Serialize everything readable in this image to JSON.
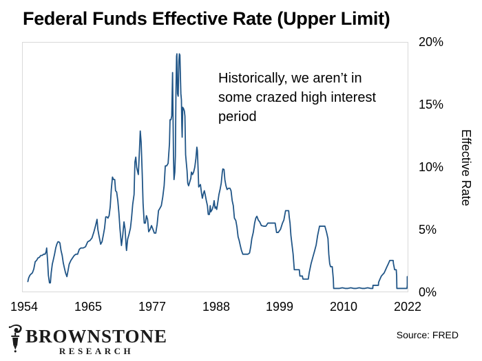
{
  "header": {
    "title": "Federal Funds Effective Rate (Upper Limit)"
  },
  "annotation": {
    "text": "Historically, we aren’t in\nsome crazed high interest\nperiod"
  },
  "y_axis": {
    "label": "Effective Rate",
    "ticks": [
      "20%",
      "15%",
      "10%",
      "5%",
      "0%"
    ]
  },
  "x_axis": {
    "ticks": [
      "1954",
      "1965",
      "1977",
      "1988",
      "1999",
      "2010",
      "2022"
    ]
  },
  "footer": {
    "logo": {
      "icon": "lamppost-icon",
      "name": "BROWNSTONE",
      "subtitle": "RESEARCH"
    },
    "source": "Source: FRED"
  },
  "colors": {
    "line": "#1f5486",
    "plot_border": "#d9d9d9",
    "text": "#000000",
    "logo": "#1b1b1b",
    "background": "#ffffff"
  },
  "chart_data": {
    "type": "line",
    "title": "Federal Funds Effective Rate (Upper Limit)",
    "xlabel": "",
    "ylabel": "Effective Rate",
    "xlim": [
      1954,
      2022.5
    ],
    "ylim": [
      0,
      20
    ],
    "x_tick_labels": [
      "1954",
      "1965",
      "1977",
      "1988",
      "1999",
      "2010",
      "2022"
    ],
    "y_tick_labels": [
      "0%",
      "5%",
      "10%",
      "15%",
      "20%"
    ],
    "grid": false,
    "legend": "none",
    "annotation": "Historically, we aren’t in some crazed high interest period",
    "source": "Source: FRED",
    "series": [
      {
        "name": "Federal Funds Effective Rate (Upper Limit)",
        "units": "percent",
        "points": [
          [
            1954.55,
            0.8
          ],
          [
            1954.7,
            1.1
          ],
          [
            1954.9,
            1.3
          ],
          [
            1955.1,
            1.4
          ],
          [
            1955.35,
            1.5
          ],
          [
            1955.6,
            1.8
          ],
          [
            1955.85,
            2.4
          ],
          [
            1956.1,
            2.5
          ],
          [
            1956.35,
            2.7
          ],
          [
            1956.6,
            2.75
          ],
          [
            1956.85,
            2.9
          ],
          [
            1957.1,
            2.9
          ],
          [
            1957.35,
            3
          ],
          [
            1957.6,
            3
          ],
          [
            1957.8,
            3.2
          ],
          [
            1957.9,
            3.5
          ],
          [
            1958.05,
            2.5
          ],
          [
            1958.2,
            1.3
          ],
          [
            1958.4,
            0.7
          ],
          [
            1958.55,
            0.7
          ],
          [
            1958.7,
            1.5
          ],
          [
            1958.9,
            2.2
          ],
          [
            1959.1,
            2.6
          ],
          [
            1959.3,
            3
          ],
          [
            1959.5,
            3.5
          ],
          [
            1959.7,
            3.8
          ],
          [
            1959.9,
            4
          ],
          [
            1960.05,
            4
          ],
          [
            1960.25,
            3.9
          ],
          [
            1960.45,
            3.3
          ],
          [
            1960.65,
            2.9
          ],
          [
            1960.85,
            2.3
          ],
          [
            1961.05,
            1.9
          ],
          [
            1961.25,
            1.5
          ],
          [
            1961.5,
            1.2
          ],
          [
            1961.7,
            1.7
          ],
          [
            1961.9,
            2.2
          ],
          [
            1962.2,
            2.5
          ],
          [
            1962.5,
            2.7
          ],
          [
            1962.8,
            2.9
          ],
          [
            1963.1,
            3
          ],
          [
            1963.4,
            3
          ],
          [
            1963.7,
            3.4
          ],
          [
            1964,
            3.5
          ],
          [
            1964.4,
            3.5
          ],
          [
            1964.8,
            3.6
          ],
          [
            1965.2,
            4
          ],
          [
            1965.6,
            4.1
          ],
          [
            1965.95,
            4.3
          ],
          [
            1966.3,
            4.8
          ],
          [
            1966.6,
            5.3
          ],
          [
            1966.85,
            5.8
          ],
          [
            1967,
            5
          ],
          [
            1967.2,
            4.5
          ],
          [
            1967.5,
            3.8
          ],
          [
            1967.75,
            4
          ],
          [
            1968,
            4.6
          ],
          [
            1968.2,
            5.1
          ],
          [
            1968.4,
            6
          ],
          [
            1968.6,
            6
          ],
          [
            1968.8,
            5.9
          ],
          [
            1969,
            6.1
          ],
          [
            1969.2,
            6.8
          ],
          [
            1969.4,
            8.2
          ],
          [
            1969.6,
            9.2
          ],
          [
            1969.8,
            9
          ],
          [
            1970,
            9
          ],
          [
            1970.15,
            8.1
          ],
          [
            1970.35,
            8
          ],
          [
            1970.55,
            7.3
          ],
          [
            1970.75,
            6.3
          ],
          [
            1970.95,
            5
          ],
          [
            1971.2,
            3.7
          ],
          [
            1971.45,
            4.6
          ],
          [
            1971.65,
            5.6
          ],
          [
            1971.85,
            5
          ],
          [
            1972.05,
            3.5
          ],
          [
            1972.1,
            3.3
          ],
          [
            1972.3,
            4.2
          ],
          [
            1972.55,
            4.6
          ],
          [
            1972.8,
            5.1
          ],
          [
            1973,
            5.9
          ],
          [
            1973.2,
            7
          ],
          [
            1973.45,
            7.8
          ],
          [
            1973.6,
            10.4
          ],
          [
            1973.75,
            10.8
          ],
          [
            1973.9,
            10
          ],
          [
            1974.05,
            9.7
          ],
          [
            1974.2,
            9.4
          ],
          [
            1974.4,
            11.3
          ],
          [
            1974.55,
            12.9
          ],
          [
            1974.7,
            12
          ],
          [
            1974.9,
            9.4
          ],
          [
            1975.05,
            7.1
          ],
          [
            1975.25,
            5.5
          ],
          [
            1975.45,
            5.5
          ],
          [
            1975.65,
            6.1
          ],
          [
            1975.85,
            5.8
          ],
          [
            1976.05,
            4.8
          ],
          [
            1976.3,
            5
          ],
          [
            1976.55,
            5.3
          ],
          [
            1976.8,
            5
          ],
          [
            1977.05,
            4.7
          ],
          [
            1977.3,
            4.7
          ],
          [
            1977.55,
            5.4
          ],
          [
            1977.8,
            6.5
          ],
          [
            1978.05,
            6.7
          ],
          [
            1978.3,
            6.9
          ],
          [
            1978.55,
            7.6
          ],
          [
            1978.8,
            8.5
          ],
          [
            1979,
            10.1
          ],
          [
            1979.25,
            10.1
          ],
          [
            1979.5,
            10.3
          ],
          [
            1979.75,
            11.9
          ],
          [
            1979.85,
            13.8
          ],
          [
            1980,
            13.8
          ],
          [
            1980.15,
            14.1
          ],
          [
            1980.3,
            17.6
          ],
          [
            1980.45,
            11
          ],
          [
            1980.55,
            9
          ],
          [
            1980.7,
            9.6
          ],
          [
            1980.8,
            10.9
          ],
          [
            1980.9,
            15.9
          ],
          [
            1981,
            18.9
          ],
          [
            1981.07,
            19.1
          ],
          [
            1981.17,
            15.9
          ],
          [
            1981.3,
            15.7
          ],
          [
            1981.42,
            18.5
          ],
          [
            1981.5,
            19.1
          ],
          [
            1981.6,
            19
          ],
          [
            1981.67,
            17.8
          ],
          [
            1981.77,
            15.9
          ],
          [
            1981.87,
            15.4
          ],
          [
            1981.95,
            13.3
          ],
          [
            1982,
            12.4
          ],
          [
            1982.1,
            14.8
          ],
          [
            1982.25,
            14.7
          ],
          [
            1982.4,
            14.5
          ],
          [
            1982.5,
            14.1
          ],
          [
            1982.62,
            11
          ],
          [
            1982.75,
            10.3
          ],
          [
            1982.87,
            9.7
          ],
          [
            1983,
            8.7
          ],
          [
            1983.15,
            8.5
          ],
          [
            1983.35,
            8.8
          ],
          [
            1983.55,
            9.1
          ],
          [
            1983.65,
            9.6
          ],
          [
            1983.85,
            9.4
          ],
          [
            1984.05,
            9.6
          ],
          [
            1984.25,
            10
          ],
          [
            1984.45,
            10.7
          ],
          [
            1984.62,
            11.6
          ],
          [
            1984.72,
            11.3
          ],
          [
            1984.82,
            10
          ],
          [
            1984.95,
            8.4
          ],
          [
            1985.1,
            8.5
          ],
          [
            1985.25,
            8.6
          ],
          [
            1985.45,
            7.9
          ],
          [
            1985.6,
            7.5
          ],
          [
            1985.8,
            7.9
          ],
          [
            1985.95,
            8.1
          ],
          [
            1986.1,
            7.8
          ],
          [
            1986.3,
            7.3
          ],
          [
            1986.5,
            6.9
          ],
          [
            1986.65,
            6.2
          ],
          [
            1986.85,
            6.2
          ],
          [
            1987,
            6.9
          ],
          [
            1987.1,
            6.4
          ],
          [
            1987.35,
            6.6
          ],
          [
            1987.55,
            6.9
          ],
          [
            1987.7,
            7.3
          ],
          [
            1987.85,
            6.7
          ],
          [
            1988,
            6.8
          ],
          [
            1988.15,
            6.6
          ],
          [
            1988.35,
            7.2
          ],
          [
            1988.55,
            7.8
          ],
          [
            1988.75,
            8.2
          ],
          [
            1988.95,
            8.7
          ],
          [
            1989.15,
            9.6
          ],
          [
            1989.25,
            9.85
          ],
          [
            1989.45,
            9.8
          ],
          [
            1989.6,
            9
          ],
          [
            1989.8,
            8.5
          ],
          [
            1990,
            8.2
          ],
          [
            1990.25,
            8.3
          ],
          [
            1990.5,
            8.3
          ],
          [
            1990.7,
            8.1
          ],
          [
            1990.9,
            7.3
          ],
          [
            1991.1,
            6.9
          ],
          [
            1991.3,
            5.9
          ],
          [
            1991.55,
            5.7
          ],
          [
            1991.75,
            5.2
          ],
          [
            1991.95,
            4.4
          ],
          [
            1992.15,
            4.1
          ],
          [
            1992.35,
            3.7
          ],
          [
            1992.55,
            3.3
          ],
          [
            1992.8,
            3
          ],
          [
            1993.2,
            3
          ],
          [
            1993.7,
            3
          ],
          [
            1994,
            3.1
          ],
          [
            1994.2,
            3.6
          ],
          [
            1994.4,
            4.25
          ],
          [
            1994.65,
            4.75
          ],
          [
            1994.9,
            5.5
          ],
          [
            1995.1,
            5.9
          ],
          [
            1995.3,
            6.05
          ],
          [
            1995.55,
            5.75
          ],
          [
            1995.8,
            5.6
          ],
          [
            1996.1,
            5.3
          ],
          [
            1996.5,
            5.25
          ],
          [
            1996.9,
            5.25
          ],
          [
            1997.25,
            5.5
          ],
          [
            1997.7,
            5.5
          ],
          [
            1998.1,
            5.5
          ],
          [
            1998.55,
            5.5
          ],
          [
            1998.8,
            4.75
          ],
          [
            1999.1,
            4.75
          ],
          [
            1999.5,
            5
          ],
          [
            1999.85,
            5.5
          ],
          [
            2000.1,
            5.75
          ],
          [
            2000.4,
            6.5
          ],
          [
            2000.95,
            6.5
          ],
          [
            2001.05,
            6
          ],
          [
            2001.2,
            5.5
          ],
          [
            2001.35,
            4.5
          ],
          [
            2001.55,
            3.75
          ],
          [
            2001.75,
            3
          ],
          [
            2001.95,
            1.75
          ],
          [
            2002.4,
            1.75
          ],
          [
            2002.85,
            1.75
          ],
          [
            2002.95,
            1.25
          ],
          [
            2003.4,
            1.25
          ],
          [
            2003.5,
            1
          ],
          [
            2004,
            1
          ],
          [
            2004.45,
            1
          ],
          [
            2004.6,
            1.5
          ],
          [
            2004.95,
            2.25
          ],
          [
            2005.25,
            2.75
          ],
          [
            2005.55,
            3.25
          ],
          [
            2005.85,
            3.75
          ],
          [
            2006.1,
            4.5
          ],
          [
            2006.45,
            5.25
          ],
          [
            2006.9,
            5.25
          ],
          [
            2007.4,
            5.25
          ],
          [
            2007.7,
            4.75
          ],
          [
            2007.95,
            4.25
          ],
          [
            2008.1,
            3
          ],
          [
            2008.25,
            2.25
          ],
          [
            2008.4,
            2
          ],
          [
            2008.7,
            2
          ],
          [
            2008.8,
            1.5
          ],
          [
            2008.9,
            1
          ],
          [
            2008.96,
            0.25
          ],
          [
            2009.5,
            0.25
          ],
          [
            2010,
            0.25
          ],
          [
            2010.5,
            0.3
          ],
          [
            2011,
            0.25
          ],
          [
            2011.5,
            0.25
          ],
          [
            2012,
            0.3
          ],
          [
            2012.5,
            0.25
          ],
          [
            2013,
            0.25
          ],
          [
            2013.5,
            0.3
          ],
          [
            2014,
            0.25
          ],
          [
            2014.5,
            0.25
          ],
          [
            2015,
            0.3
          ],
          [
            2015.5,
            0.25
          ],
          [
            2015.92,
            0.25
          ],
          [
            2015.96,
            0.5
          ],
          [
            2016.5,
            0.5
          ],
          [
            2016.92,
            0.5
          ],
          [
            2016.96,
            0.75
          ],
          [
            2017.2,
            1
          ],
          [
            2017.45,
            1.25
          ],
          [
            2017.95,
            1.5
          ],
          [
            2018.2,
            1.75
          ],
          [
            2018.45,
            2
          ],
          [
            2018.7,
            2.25
          ],
          [
            2018.95,
            2.5
          ],
          [
            2019.3,
            2.5
          ],
          [
            2019.55,
            2.5
          ],
          [
            2019.6,
            2.25
          ],
          [
            2019.7,
            2
          ],
          [
            2019.8,
            1.75
          ],
          [
            2020.1,
            1.75
          ],
          [
            2020.17,
            1.25
          ],
          [
            2020.2,
            0.25
          ],
          [
            2020.6,
            0.25
          ],
          [
            2021,
            0.25
          ],
          [
            2021.5,
            0.25
          ],
          [
            2022,
            0.25
          ],
          [
            2022.2,
            0.5
          ],
          [
            2022.33,
            1
          ],
          [
            2022.4,
            1.2
          ]
        ]
      }
    ]
  }
}
